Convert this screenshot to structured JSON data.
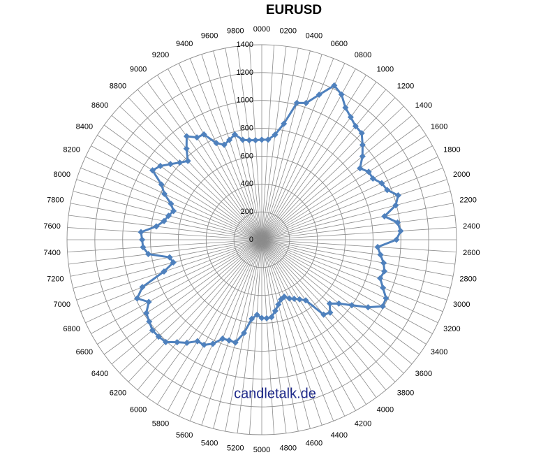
{
  "chart_data": {
    "type": "radar",
    "title": "EURUSD",
    "watermark": "candletalk.de",
    "categories": [
      "0000",
      null,
      "0200",
      null,
      "0400",
      null,
      "0600",
      null,
      "0800",
      null,
      "1000",
      null,
      "1200",
      null,
      "1400",
      null,
      "1600",
      null,
      "1800",
      null,
      "2000",
      null,
      "2200",
      null,
      "2400",
      null,
      "2600",
      null,
      "2800",
      null,
      "3000",
      null,
      "3200",
      null,
      "3400",
      null,
      "3600",
      null,
      "3800",
      null,
      "4000",
      null,
      "4200",
      null,
      "4400",
      null,
      "4600",
      null,
      "4800",
      null,
      "5000",
      null,
      "5200",
      null,
      "5400",
      null,
      "5600",
      null,
      "5800",
      null,
      "6000",
      null,
      "6200",
      null,
      "6400",
      null,
      "6600",
      null,
      "6800",
      null,
      "7000",
      null,
      "7200",
      null,
      "7400",
      null,
      "7600",
      null,
      "7800",
      null,
      "8000",
      null,
      "8200",
      null,
      "8400",
      null,
      "8600",
      null,
      "8800",
      null,
      "9000",
      null,
      "9200",
      null,
      "9400",
      null,
      "9600",
      null,
      "9800",
      null
    ],
    "values": [
      718,
      720,
      760,
      848,
      1014,
      1032,
      1120,
      1224,
      1190,
      1123,
      1088,
      1058,
      1050,
      994,
      940,
      873,
      910,
      912,
      953,
      970,
      1031,
      994,
      898,
      984,
      1000,
      968,
      835,
      860,
      892,
      910,
      895,
      937,
      987,
      992,
      905,
      800,
      719,
      670,
      718,
      698,
      538,
      507,
      484,
      466,
      440,
      450,
      480,
      520,
      560,
      565,
      562,
      540,
      572,
      682,
      762,
      760,
      764,
      826,
      861,
      863,
      915,
      955,
      1008,
      1017,
      1020,
      1000,
      983,
      927,
      990,
      923,
      739,
      656,
      674,
      822,
      855,
      860,
      870,
      764,
      715,
      692,
      667,
      702,
      774,
      823,
      930,
      901,
      852,
      809,
      776,
      849,
      918,
      870,
      863,
      767,
      733,
      753,
      780,
      730,
      720,
      716
    ],
    "color": "#4f81bd",
    "ylim": [
      0,
      1400
    ],
    "yticks": [
      0,
      200,
      400,
      600,
      800,
      1000,
      1200,
      1400
    ],
    "grid": true
  }
}
